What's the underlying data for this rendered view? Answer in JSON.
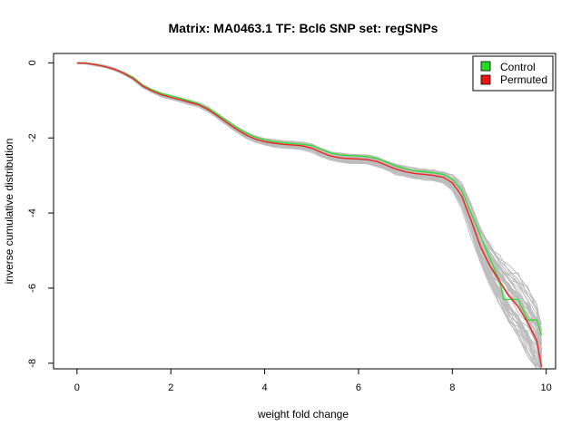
{
  "chart_data": {
    "type": "line",
    "title": "Matrix: MA0463.1 TF: Bcl6 SNP set: regSNPs",
    "xlabel": "weight fold change",
    "ylabel": "inverse cumulative distribution",
    "xlim": [
      -0.5,
      10.2
    ],
    "ylim": [
      -8.15,
      0.25
    ],
    "xticks": [
      0,
      2,
      4,
      6,
      8,
      10
    ],
    "yticks": [
      0,
      -2,
      -4,
      -6,
      -8
    ],
    "grid": false,
    "legend_position": "top-right",
    "legend": [
      {
        "label": "Control",
        "color": "#22dd22"
      },
      {
        "label": "Permuted",
        "color": "#ee1111"
      }
    ],
    "series": [
      {
        "name": "Control",
        "color": "#33dd33",
        "x": [
          0,
          0.2,
          0.4,
          0.6,
          0.8,
          1.0,
          1.2,
          1.4,
          1.6,
          1.8,
          2.0,
          2.2,
          2.4,
          2.6,
          2.8,
          3.0,
          3.2,
          3.4,
          3.6,
          3.8,
          4.0,
          4.2,
          4.4,
          4.6,
          4.8,
          5.0,
          5.2,
          5.4,
          5.6,
          5.8,
          6.0,
          6.2,
          6.4,
          6.6,
          6.8,
          7.0,
          7.2,
          7.4,
          7.6,
          7.8,
          8.0,
          8.2,
          8.4,
          8.6,
          8.8,
          9.0,
          9.1,
          9.2,
          9.4,
          9.6,
          9.8,
          9.9
        ],
        "y": [
          0,
          0,
          -0.05,
          -0.1,
          -0.17,
          -0.27,
          -0.4,
          -0.6,
          -0.72,
          -0.82,
          -0.88,
          -0.95,
          -1.02,
          -1.1,
          -1.22,
          -1.38,
          -1.55,
          -1.72,
          -1.87,
          -1.98,
          -2.05,
          -2.1,
          -2.13,
          -2.15,
          -2.17,
          -2.2,
          -2.3,
          -2.4,
          -2.45,
          -2.47,
          -2.48,
          -2.5,
          -2.55,
          -2.65,
          -2.75,
          -2.82,
          -2.88,
          -2.9,
          -2.93,
          -2.97,
          -3.1,
          -3.4,
          -4.0,
          -4.6,
          -5.2,
          -5.8,
          -6.3,
          -6.3,
          -6.3,
          -6.85,
          -6.85,
          -7.25
        ]
      },
      {
        "name": "Permuted",
        "color": "#ee2222",
        "x": [
          0,
          0.2,
          0.4,
          0.6,
          0.8,
          1.0,
          1.2,
          1.4,
          1.6,
          1.8,
          2.0,
          2.2,
          2.4,
          2.6,
          2.8,
          3.0,
          3.2,
          3.4,
          3.6,
          3.8,
          4.0,
          4.2,
          4.4,
          4.6,
          4.8,
          5.0,
          5.2,
          5.4,
          5.6,
          5.8,
          6.0,
          6.2,
          6.4,
          6.6,
          6.8,
          7.0,
          7.2,
          7.4,
          7.6,
          7.8,
          8.0,
          8.2,
          8.4,
          8.6,
          8.8,
          9.0,
          9.2,
          9.4,
          9.6,
          9.8,
          9.9
        ],
        "y": [
          0,
          -0.01,
          -0.05,
          -0.1,
          -0.17,
          -0.28,
          -0.42,
          -0.62,
          -0.75,
          -0.85,
          -0.92,
          -0.98,
          -1.05,
          -1.12,
          -1.25,
          -1.42,
          -1.6,
          -1.77,
          -1.92,
          -2.03,
          -2.1,
          -2.14,
          -2.17,
          -2.19,
          -2.21,
          -2.27,
          -2.38,
          -2.48,
          -2.53,
          -2.55,
          -2.56,
          -2.58,
          -2.63,
          -2.73,
          -2.83,
          -2.9,
          -2.95,
          -2.97,
          -3.0,
          -3.05,
          -3.2,
          -3.55,
          -4.2,
          -4.9,
          -5.4,
          -5.8,
          -6.2,
          -6.5,
          -6.9,
          -7.4,
          -8.1
        ]
      }
    ]
  }
}
